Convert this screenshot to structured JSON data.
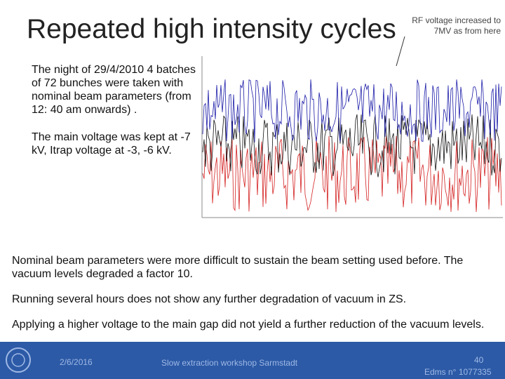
{
  "title": "Repeated high intensity cycles",
  "annotation": [
    "RF voltage increased to",
    "7MV as from here"
  ],
  "left_text": [
    "The night of 29/4/2010 4 batches of 72 bunches were taken with nominal beam parameters (from 12: 40 am onwards) .",
    "The main voltage was kept at -7 kV, Itrap voltage at -3, -6 kV."
  ],
  "body": [
    "Nominal beam parameters were more difficult to sustain  the beam setting used before. The vacuum levels degraded a factor 10.",
    "Running several hours does not show any further degradation of vacuum in ZS.",
    "Applying a higher voltage to the main gap did not yield a further reduction of the vacuum  levels."
  ],
  "footer": {
    "date": "2/6/2016",
    "event": "Slow extraction workshop Sarmstadt",
    "page": "40",
    "edms": "Edms n° 1077335"
  }
}
